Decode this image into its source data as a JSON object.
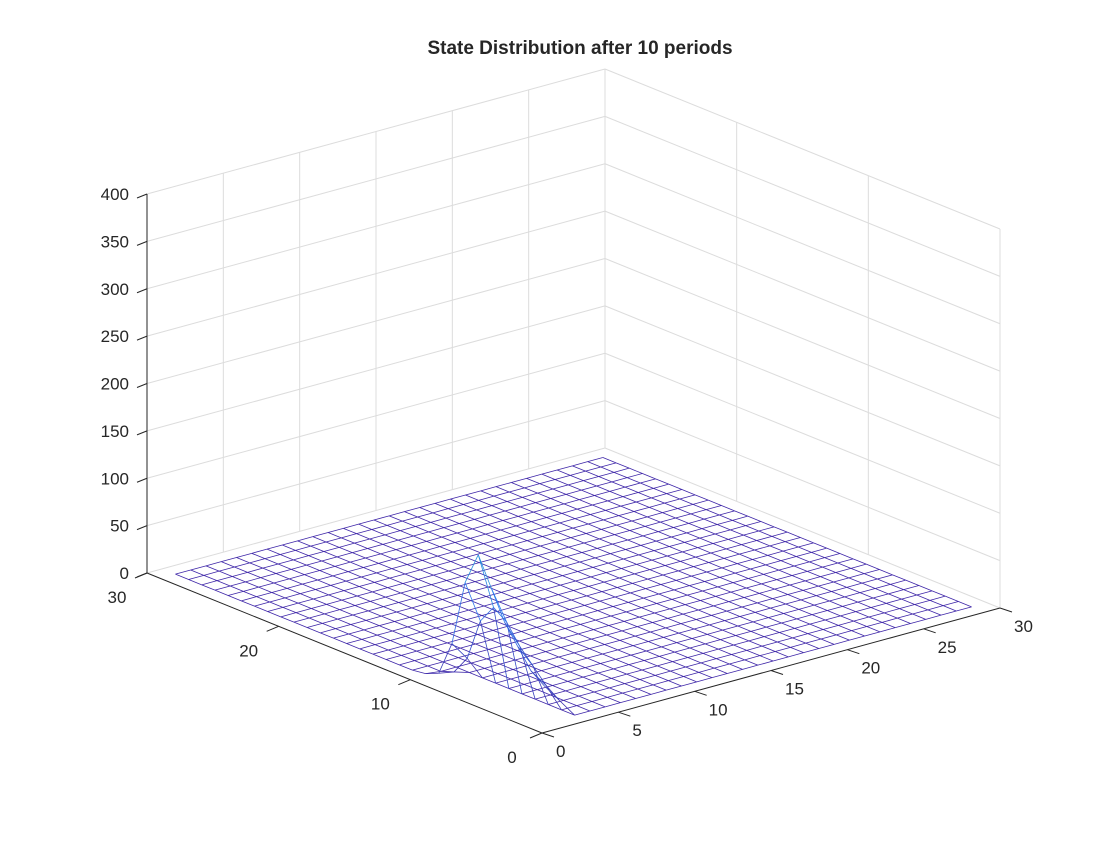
{
  "chart_data": {
    "type": "surface3d",
    "title": "State Distribution after 10 periods",
    "xlabel": "",
    "ylabel": "",
    "zlabel": "",
    "xlim": [
      0,
      30
    ],
    "ylim": [
      0,
      30
    ],
    "zlim": [
      0,
      400
    ],
    "xticks": [
      "0",
      "5",
      "10",
      "15",
      "20",
      "25",
      "30"
    ],
    "yticks": [
      "0",
      "10",
      "20",
      "30"
    ],
    "zticks": [
      "0",
      "50",
      "100",
      "150",
      "200",
      "250",
      "300",
      "350",
      "400"
    ],
    "grid": true,
    "mesh_style": "wireframe",
    "colormap": "parula",
    "colors": {
      "low": "#3e26a8",
      "mid_low": "#2b7bf0",
      "mid": "#27bdb0",
      "mid_high": "#91cc52",
      "high": "#f9fb15"
    },
    "grid_x": [
      1,
      2,
      3,
      4,
      5,
      6,
      7,
      8,
      9,
      10,
      11,
      12,
      13,
      14,
      15,
      16,
      17,
      18,
      19,
      20,
      21,
      22,
      23,
      24,
      25,
      26,
      27,
      28,
      29
    ],
    "grid_y": [
      1,
      2,
      3,
      4,
      5,
      6,
      7,
      8,
      9,
      10,
      11,
      12,
      13,
      14,
      15,
      16,
      17,
      18,
      19,
      20,
      21,
      22,
      23,
      24,
      25,
      26,
      27,
      28,
      29
    ],
    "nonzero_points": [
      {
        "x": 1,
        "y": 1,
        "z": 40
      },
      {
        "x": 1,
        "y": 2,
        "z": 50
      },
      {
        "x": 1,
        "y": 3,
        "z": 70
      },
      {
        "x": 1,
        "y": 4,
        "z": 90
      },
      {
        "x": 1,
        "y": 5,
        "z": 120
      },
      {
        "x": 1,
        "y": 6,
        "z": 150
      },
      {
        "x": 1,
        "y": 7,
        "z": 115
      },
      {
        "x": 1,
        "y": 8,
        "z": 45
      },
      {
        "x": 1,
        "y": 9,
        "z": 8
      },
      {
        "x": 1,
        "y": 10,
        "z": 2
      },
      {
        "x": 2,
        "y": 1,
        "z": 20
      },
      {
        "x": 2,
        "y": 2,
        "z": 30
      },
      {
        "x": 2,
        "y": 3,
        "z": 45
      },
      {
        "x": 2,
        "y": 4,
        "z": 60
      },
      {
        "x": 2,
        "y": 5,
        "z": 80
      },
      {
        "x": 2,
        "y": 6,
        "z": 90
      },
      {
        "x": 2,
        "y": 7,
        "z": 70
      },
      {
        "x": 2,
        "y": 8,
        "z": 25
      },
      {
        "x": 2,
        "y": 9,
        "z": 5
      },
      {
        "x": 1,
        "y": 1,
        "z": 50,
        "note_skip": true
      }
    ]
  }
}
